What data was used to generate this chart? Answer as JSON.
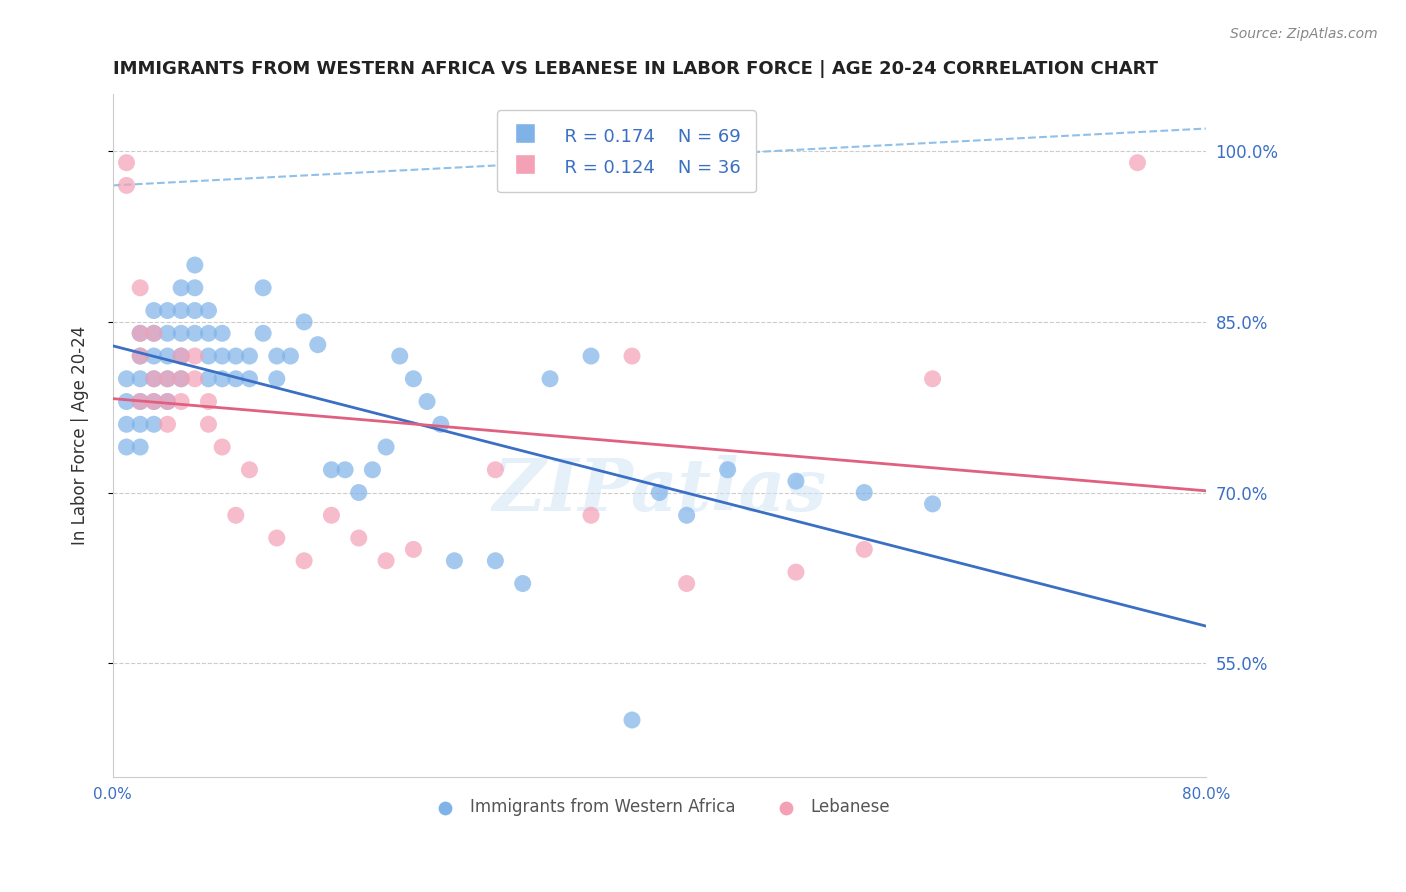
{
  "title": "IMMIGRANTS FROM WESTERN AFRICA VS LEBANESE IN LABOR FORCE | AGE 20-24 CORRELATION CHART",
  "source": "Source: ZipAtlas.com",
  "xlabel": "",
  "ylabel": "In Labor Force | Age 20-24",
  "xlim": [
    0.0,
    0.8
  ],
  "ylim": [
    0.45,
    1.05
  ],
  "yticks": [
    0.55,
    0.7,
    0.85,
    1.0
  ],
  "ytick_labels": [
    "55.0%",
    "70.0%",
    "85.0%",
    "100.0%"
  ],
  "xticks": [
    0.0,
    0.1,
    0.2,
    0.3,
    0.4,
    0.5,
    0.6,
    0.7,
    0.8
  ],
  "xtick_labels": [
    "0.0%",
    "",
    "",
    "",
    "",
    "",
    "",
    "",
    "80.0%"
  ],
  "blue_color": "#7fb3e8",
  "pink_color": "#f4a0b5",
  "blue_line_color": "#3a6fc4",
  "pink_line_color": "#e06080",
  "dashed_line_color": "#90c0e8",
  "legend_blue_R": "0.174",
  "legend_blue_N": "69",
  "legend_pink_R": "0.124",
  "legend_pink_N": "36",
  "watermark": "ZIPatlas",
  "blue_scatter_x": [
    0.01,
    0.01,
    0.01,
    0.01,
    0.02,
    0.02,
    0.02,
    0.02,
    0.02,
    0.02,
    0.03,
    0.03,
    0.03,
    0.03,
    0.03,
    0.03,
    0.04,
    0.04,
    0.04,
    0.04,
    0.04,
    0.05,
    0.05,
    0.05,
    0.05,
    0.05,
    0.06,
    0.06,
    0.06,
    0.06,
    0.07,
    0.07,
    0.07,
    0.07,
    0.08,
    0.08,
    0.08,
    0.09,
    0.09,
    0.1,
    0.1,
    0.11,
    0.11,
    0.12,
    0.12,
    0.13,
    0.14,
    0.15,
    0.16,
    0.17,
    0.18,
    0.19,
    0.2,
    0.21,
    0.22,
    0.23,
    0.24,
    0.25,
    0.28,
    0.3,
    0.32,
    0.35,
    0.38,
    0.4,
    0.42,
    0.45,
    0.5,
    0.55,
    0.6
  ],
  "blue_scatter_y": [
    0.8,
    0.78,
    0.76,
    0.74,
    0.84,
    0.82,
    0.8,
    0.78,
    0.76,
    0.74,
    0.86,
    0.84,
    0.82,
    0.8,
    0.78,
    0.76,
    0.86,
    0.84,
    0.82,
    0.8,
    0.78,
    0.88,
    0.86,
    0.84,
    0.82,
    0.8,
    0.9,
    0.88,
    0.86,
    0.84,
    0.86,
    0.84,
    0.82,
    0.8,
    0.84,
    0.82,
    0.8,
    0.82,
    0.8,
    0.82,
    0.8,
    0.88,
    0.84,
    0.82,
    0.8,
    0.82,
    0.85,
    0.83,
    0.72,
    0.72,
    0.7,
    0.72,
    0.74,
    0.82,
    0.8,
    0.78,
    0.76,
    0.64,
    0.64,
    0.62,
    0.8,
    0.82,
    0.5,
    0.7,
    0.68,
    0.72,
    0.71,
    0.7,
    0.69
  ],
  "pink_scatter_x": [
    0.01,
    0.01,
    0.02,
    0.02,
    0.02,
    0.02,
    0.03,
    0.03,
    0.03,
    0.04,
    0.04,
    0.04,
    0.05,
    0.05,
    0.05,
    0.06,
    0.06,
    0.07,
    0.07,
    0.08,
    0.09,
    0.1,
    0.12,
    0.14,
    0.16,
    0.18,
    0.2,
    0.22,
    0.28,
    0.35,
    0.38,
    0.42,
    0.5,
    0.55,
    0.6,
    0.75
  ],
  "pink_scatter_y": [
    0.99,
    0.97,
    0.88,
    0.84,
    0.82,
    0.78,
    0.84,
    0.8,
    0.78,
    0.8,
    0.78,
    0.76,
    0.82,
    0.8,
    0.78,
    0.82,
    0.8,
    0.78,
    0.76,
    0.74,
    0.68,
    0.72,
    0.66,
    0.64,
    0.68,
    0.66,
    0.64,
    0.65,
    0.72,
    0.68,
    0.82,
    0.62,
    0.63,
    0.65,
    0.8,
    0.99
  ]
}
